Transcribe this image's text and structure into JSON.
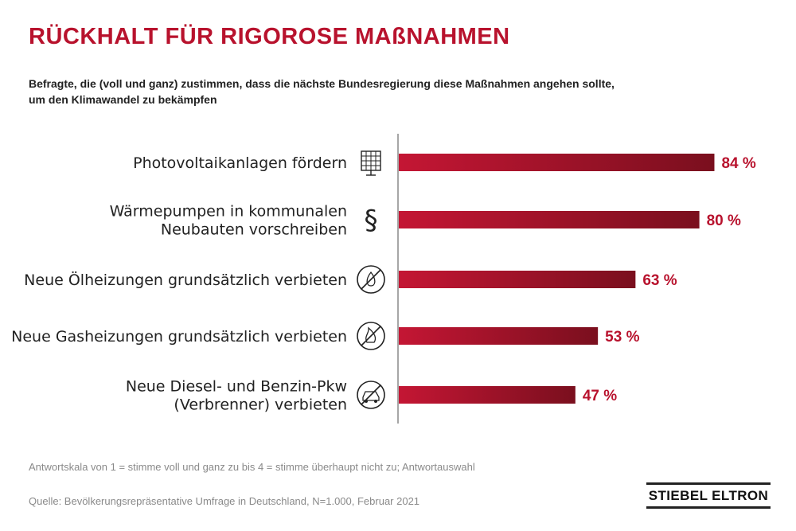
{
  "title": "RÜCKHALT FÜR RIGOROSE MAßNAHMEN",
  "subtitle_lines": [
    "Befragte, die (voll und ganz) zustimmen, dass die nächste Bundesregierung diese Maßnahmen angehen sollte,",
    "um den Klimawandel zu bekämpfen"
  ],
  "colors": {
    "accent": "#b8122d",
    "bar_start": "#c41634",
    "bar_end": "#7a0f1e",
    "axis": "#888888"
  },
  "chart_data": {
    "type": "bar",
    "orientation": "horizontal",
    "categories": [
      [
        "Photovoltaikanlagen fördern"
      ],
      [
        "Wärmepumpen in kommunalen",
        "Neubauten vorschreiben"
      ],
      [
        "Neue Ölheizungen grundsätzlich verbieten"
      ],
      [
        "Neue Gasheizungen grundsätzlich verbieten"
      ],
      [
        "Neue Diesel- und Benzin-Pkw",
        "(Verbrenner) verbieten"
      ]
    ],
    "values": [
      84,
      80,
      63,
      53,
      47
    ],
    "value_labels": [
      "84 %",
      "80 %",
      "63 %",
      "53 %",
      "47 %"
    ],
    "icons": [
      "solar-panel-icon",
      "paragraph-icon",
      "no-oil-icon",
      "no-gas-icon",
      "no-car-icon"
    ],
    "unit": "%",
    "xlim": [
      0,
      100
    ],
    "grid": false,
    "legend": "none"
  },
  "footnotes": {
    "scale": "Antwortskala von 1 = stimme voll und ganz zu bis 4 = stimme überhaupt nicht zu; Antwortauswahl",
    "source": "Quelle: Bevölkerungsrepräsentative Umfrage in Deutschland, N=1.000, Februar 2021"
  },
  "logo": "STIEBEL ELTRON"
}
